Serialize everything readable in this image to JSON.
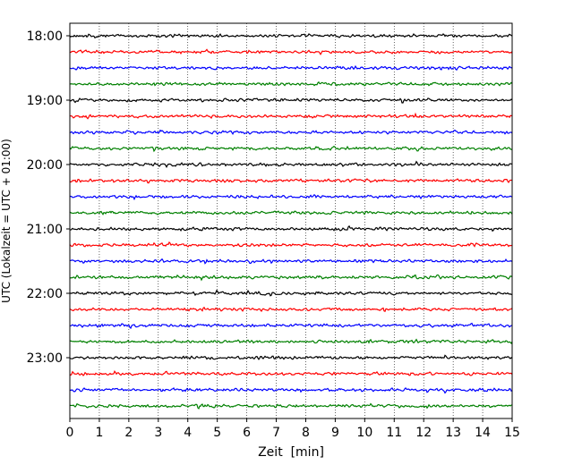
{
  "chart_data": {
    "type": "line",
    "xlabel": "Zeit  [min]",
    "ylabel": "UTC (Lokalzeit = UTC + 01:00)",
    "xlim": [
      0,
      15
    ],
    "x_ticks": [
      "0",
      "1",
      "2",
      "3",
      "4",
      "5",
      "6",
      "7",
      "8",
      "9",
      "10",
      "11",
      "12",
      "13",
      "14",
      "15"
    ],
    "y_ticks": [
      "18:00",
      "19:00",
      "20:00",
      "21:00",
      "22:00",
      "23:00"
    ],
    "grid": "vertical dotted lines at each minute",
    "trace_interval_minutes": 15,
    "trace_count": 24,
    "series_colors": [
      "#000000",
      "#ff0000",
      "#0000ff",
      "#008000"
    ]
  }
}
